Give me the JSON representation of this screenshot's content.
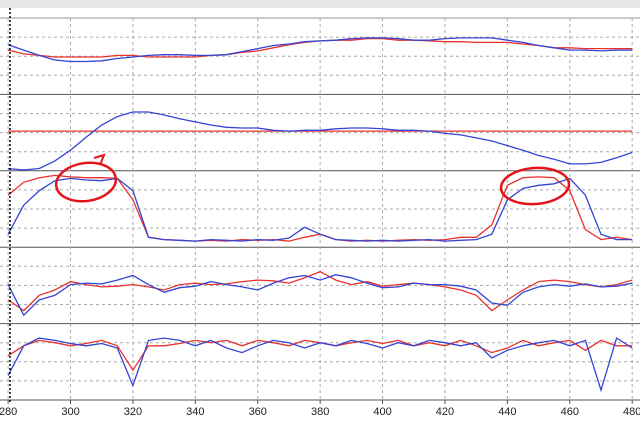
{
  "chart_data": {
    "type": "line",
    "x": [
      280,
      285,
      290,
      295,
      300,
      305,
      310,
      315,
      320,
      325,
      330,
      335,
      340,
      345,
      350,
      355,
      360,
      365,
      370,
      375,
      380,
      385,
      390,
      395,
      400,
      405,
      410,
      415,
      420,
      425,
      430,
      435,
      440,
      445,
      450,
      455,
      460,
      465,
      470,
      475,
      480
    ],
    "xlim": [
      277.4,
      482.5
    ],
    "xticks": [
      280,
      300,
      320,
      340,
      360,
      380,
      400,
      420,
      440,
      460,
      480
    ],
    "grid": true,
    "panels": [
      {
        "ylim": [
          0,
          100
        ],
        "series": [
          {
            "color": "#e8322d",
            "values": [
              58,
              53,
              51,
              49,
              49,
              49,
              49,
              51,
              51,
              49,
              49,
              49,
              49,
              51,
              52,
              55,
              57,
              61,
              65,
              68,
              70,
              71,
              71,
              73,
              73,
              71,
              71,
              70,
              69,
              69,
              68,
              68,
              68,
              66,
              64,
              61,
              61,
              60,
              60,
              60,
              60
            ]
          },
          {
            "color": "#3444d4",
            "values": [
              65,
              58,
              51,
              45,
              43,
              43,
              44,
              47,
              49,
              51,
              52,
              52,
              51,
              51,
              52,
              56,
              60,
              64,
              66,
              69,
              70,
              71,
              73,
              74,
              74,
              73,
              71,
              71,
              73,
              74,
              74,
              74,
              71,
              68,
              64,
              61,
              58,
              58,
              57,
              58,
              58
            ]
          }
        ]
      },
      {
        "ylim": [
          0,
          100
        ],
        "series": [
          {
            "color": "#e8322d",
            "values": [
              52,
              52,
              52,
              52,
              52,
              52,
              52,
              52,
              52,
              52,
              52,
              52,
              52,
              52,
              52,
              52,
              52,
              52,
              52,
              52,
              52,
              52,
              52,
              52,
              52,
              52,
              52,
              52,
              52,
              52,
              52,
              52,
              52,
              52,
              52,
              52,
              52,
              52,
              52,
              52,
              52
            ]
          },
          {
            "color": "#3444d4",
            "values": [
              3,
              1,
              3,
              13,
              27,
              44,
              60,
              71,
              77,
              77,
              73,
              68,
              64,
              60,
              57,
              56,
              56,
              53,
              52,
              53,
              53,
              55,
              56,
              56,
              55,
              53,
              53,
              52,
              49,
              47,
              43,
              39,
              33,
              27,
              20,
              15,
              9,
              9,
              11,
              17,
              24
            ]
          }
        ]
      },
      {
        "ylim": [
          0,
          100
        ],
        "series": [
          {
            "color": "#e8322d",
            "values": [
              68,
              85,
              91,
              94,
              92,
              91,
              91,
              90,
              62,
              13,
              10,
              9,
              8,
              9,
              8,
              10,
              9,
              10,
              8,
              13,
              17,
              10,
              8,
              9,
              8,
              9,
              10,
              9,
              10,
              13,
              13,
              29,
              81,
              91,
              92,
              91,
              74,
              23,
              10,
              13,
              10
            ]
          },
          {
            "color": "#3444d4",
            "values": [
              17,
              55,
              74,
              87,
              90,
              88,
              87,
              90,
              74,
              13,
              10,
              9,
              8,
              10,
              9,
              8,
              10,
              9,
              12,
              26,
              17,
              10,
              9,
              8,
              9,
              8,
              9,
              10,
              8,
              9,
              10,
              17,
              62,
              77,
              81,
              83,
              90,
              68,
              17,
              10,
              10
            ]
          }
        ]
      },
      {
        "ylim": [
          0,
          100
        ],
        "series": [
          {
            "color": "#e8322d",
            "values": [
              31,
              17,
              37,
              44,
              55,
              51,
              48,
              49,
              51,
              48,
              44,
              51,
              53,
              51,
              52,
              55,
              57,
              56,
              53,
              60,
              68,
              57,
              51,
              55,
              49,
              51,
              53,
              51,
              48,
              44,
              37,
              17,
              31,
              44,
              55,
              57,
              55,
              51,
              48,
              51,
              57
            ]
          },
          {
            "color": "#3444d4",
            "values": [
              51,
              11,
              31,
              37,
              51,
              53,
              52,
              57,
              63,
              51,
              41,
              47,
              49,
              55,
              51,
              48,
              44,
              53,
              60,
              63,
              57,
              64,
              60,
              53,
              47,
              48,
              53,
              51,
              51,
              49,
              44,
              27,
              24,
              41,
              48,
              51,
              49,
              52,
              48,
              49,
              53
            ]
          }
        ]
      },
      {
        "ylim": [
          0,
          100
        ],
        "series": [
          {
            "color": "#e8322d",
            "values": [
              58,
              71,
              78,
              75,
              71,
              74,
              78,
              71,
              39,
              71,
              71,
              74,
              78,
              75,
              78,
              71,
              78,
              75,
              71,
              78,
              75,
              71,
              75,
              78,
              74,
              78,
              71,
              75,
              71,
              78,
              71,
              62,
              68,
              78,
              71,
              75,
              78,
              65,
              78,
              71,
              71
            ]
          },
          {
            "color": "#3444d4",
            "values": [
              32,
              71,
              81,
              78,
              74,
              71,
              74,
              68,
              19,
              78,
              81,
              78,
              71,
              78,
              68,
              62,
              71,
              78,
              75,
              68,
              75,
              71,
              78,
              74,
              68,
              75,
              71,
              78,
              75,
              71,
              75,
              55,
              65,
              71,
              75,
              78,
              71,
              78,
              13,
              81,
              68
            ]
          }
        ]
      }
    ]
  }
}
